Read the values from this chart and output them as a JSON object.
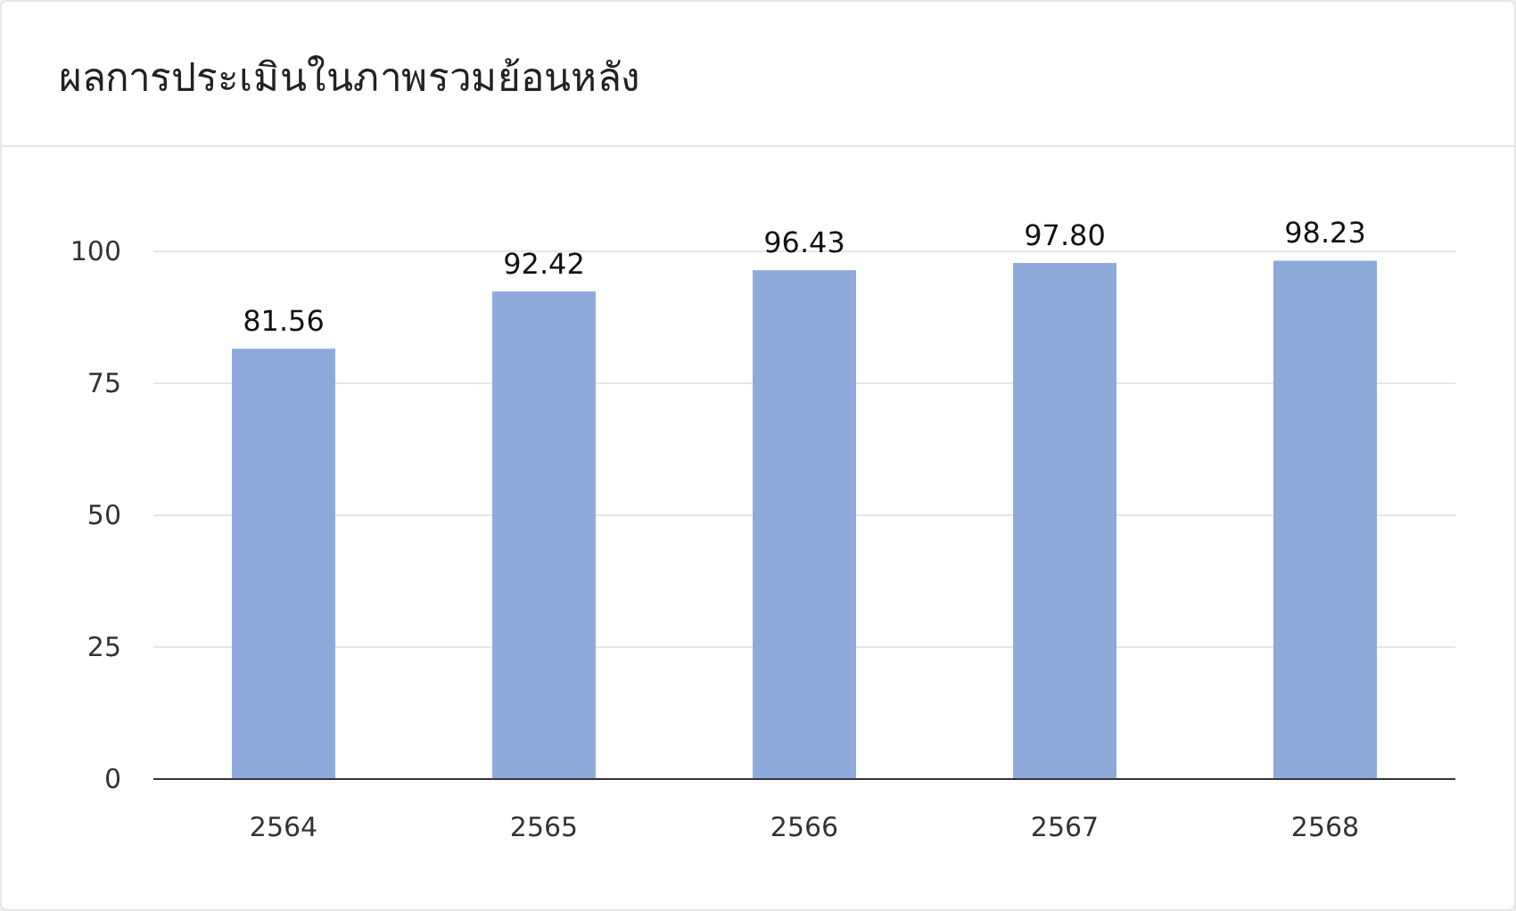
{
  "chart_data": {
    "type": "bar",
    "title": "ผลการประเมินในภาพรวมย้อนหลัง",
    "categories": [
      "2564",
      "2565",
      "2566",
      "2567",
      "2568"
    ],
    "values": [
      81.56,
      92.42,
      96.43,
      97.8,
      98.23
    ],
    "value_labels": [
      "81.56",
      "92.42",
      "96.43",
      "97.80",
      "98.23"
    ],
    "color": "#8eaadb",
    "ylim": [
      0,
      100
    ],
    "yticks": [
      0,
      25,
      50,
      75,
      100
    ],
    "grid": "y"
  }
}
